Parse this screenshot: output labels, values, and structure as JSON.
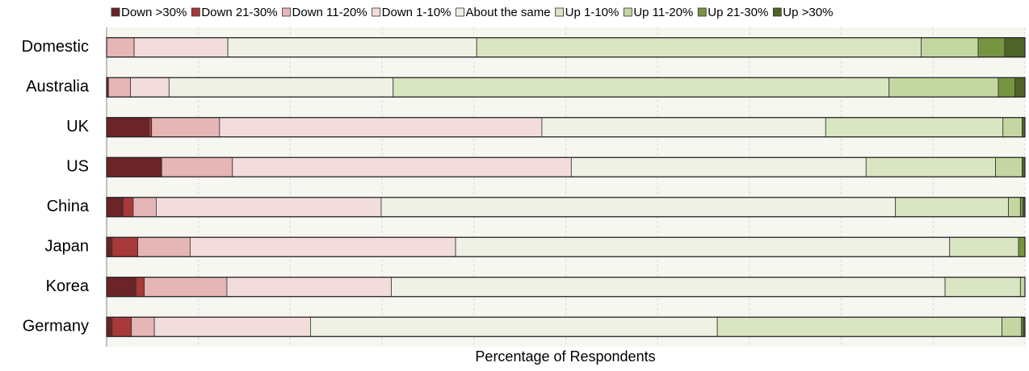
{
  "chart_data": {
    "type": "stacked_barh",
    "xlabel": "Percentage of Respondents",
    "categories": [
      "Domestic",
      "Australia",
      "UK",
      "US",
      "China",
      "Japan",
      "Korea",
      "Germany"
    ],
    "xlim": [
      0,
      100
    ],
    "xticks": [
      0,
      10,
      20,
      30,
      40,
      50,
      60,
      70,
      80,
      90,
      100
    ],
    "grid": true,
    "legend": "top",
    "series": [
      {
        "name": "Down >30%",
        "color": "#6b2428",
        "values": [
          0,
          0.2,
          4.6,
          6.0,
          1.8,
          0.6,
          3.2,
          0.6
        ]
      },
      {
        "name": "Down 21-30%",
        "color": "#a8393b",
        "values": [
          0,
          0,
          0.3,
          0,
          1.1,
          2.8,
          0.9,
          2.1
        ]
      },
      {
        "name": "Down 11-20%",
        "color": "#e6b5b6",
        "values": [
          3.0,
          2.4,
          7.4,
          7.7,
          2.5,
          5.7,
          9.0,
          2.5
        ]
      },
      {
        "name": "Down 1-10%",
        "color": "#f3dcdc",
        "values": [
          10.2,
          4.2,
          35.1,
          36.9,
          24.5,
          28.9,
          17.9,
          17.0
        ]
      },
      {
        "name": "About the same",
        "color": "#eef1e3",
        "values": [
          27.1,
          24.4,
          30.9,
          32.1,
          56.0,
          53.8,
          60.3,
          44.3
        ]
      },
      {
        "name": "Up 1-10%",
        "color": "#dae5c2",
        "values": [
          48.4,
          54.0,
          19.3,
          14.1,
          12.3,
          7.5,
          8.2,
          31.0
        ]
      },
      {
        "name": "Up 11-20%",
        "color": "#c4d7a2",
        "values": [
          6.2,
          11.9,
          2.1,
          2.9,
          1.3,
          0,
          0.5,
          2.1
        ]
      },
      {
        "name": "Up 21-30%",
        "color": "#779540",
        "values": [
          2.9,
          1.8,
          0,
          0,
          0.3,
          0.7,
          0,
          0.2
        ]
      },
      {
        "name": "Up >30%",
        "color": "#4f6228",
        "values": [
          2.2,
          1.1,
          0.3,
          0.3,
          0.2,
          0,
          0,
          0.2
        ]
      }
    ]
  }
}
